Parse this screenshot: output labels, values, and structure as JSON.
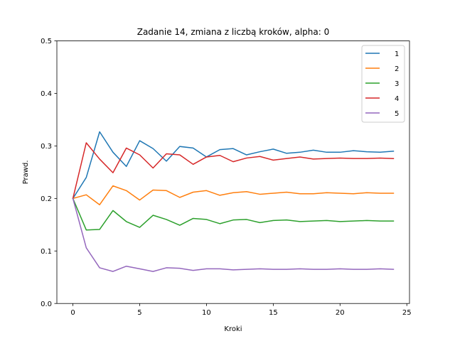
{
  "chart_data": {
    "type": "line",
    "title": "Zadanie 14, zmiana z liczbą kroków, alpha: 0",
    "xlabel": "Kroki",
    "ylabel": "Prawd.",
    "xlim": [
      -1.2,
      25.2
    ],
    "ylim": [
      0.0,
      0.5
    ],
    "xticks": [
      0,
      5,
      10,
      15,
      20,
      25
    ],
    "yticks": [
      0.0,
      0.1,
      0.2,
      0.3,
      0.4,
      0.5
    ],
    "xtick_labels": [
      "0",
      "5",
      "10",
      "15",
      "20",
      "25"
    ],
    "ytick_labels": [
      "0.0",
      "0.1",
      "0.2",
      "0.3",
      "0.4",
      "0.5"
    ],
    "grid": false,
    "legend_position": "top-right",
    "x": [
      0,
      1,
      2,
      3,
      4,
      5,
      6,
      7,
      8,
      9,
      10,
      11,
      12,
      13,
      14,
      15,
      16,
      17,
      18,
      19,
      20,
      21,
      22,
      23,
      24
    ],
    "series": [
      {
        "name": "1",
        "color": "#1f77b4",
        "values": [
          0.2,
          0.24,
          0.327,
          0.288,
          0.261,
          0.31,
          0.295,
          0.271,
          0.299,
          0.296,
          0.279,
          0.293,
          0.295,
          0.283,
          0.289,
          0.294,
          0.286,
          0.288,
          0.292,
          0.288,
          0.288,
          0.291,
          0.289,
          0.288,
          0.29
        ]
      },
      {
        "name": "2",
        "color": "#ff7f0e",
        "values": [
          0.2,
          0.207,
          0.188,
          0.224,
          0.215,
          0.197,
          0.216,
          0.215,
          0.202,
          0.212,
          0.215,
          0.206,
          0.211,
          0.213,
          0.208,
          0.21,
          0.212,
          0.209,
          0.209,
          0.211,
          0.21,
          0.209,
          0.211,
          0.21,
          0.21
        ]
      },
      {
        "name": "3",
        "color": "#2ca02c",
        "values": [
          0.2,
          0.14,
          0.141,
          0.177,
          0.156,
          0.145,
          0.168,
          0.16,
          0.149,
          0.162,
          0.16,
          0.152,
          0.159,
          0.16,
          0.154,
          0.158,
          0.159,
          0.156,
          0.157,
          0.158,
          0.156,
          0.157,
          0.158,
          0.157,
          0.157
        ]
      },
      {
        "name": "4",
        "color": "#d62728",
        "values": [
          0.2,
          0.306,
          0.275,
          0.249,
          0.296,
          0.283,
          0.258,
          0.285,
          0.283,
          0.265,
          0.279,
          0.282,
          0.27,
          0.277,
          0.28,
          0.273,
          0.276,
          0.279,
          0.275,
          0.276,
          0.277,
          0.276,
          0.276,
          0.277,
          0.276
        ]
      },
      {
        "name": "5",
        "color": "#9467bd",
        "values": [
          0.2,
          0.106,
          0.068,
          0.061,
          0.071,
          0.066,
          0.061,
          0.068,
          0.067,
          0.063,
          0.066,
          0.066,
          0.064,
          0.065,
          0.066,
          0.065,
          0.065,
          0.066,
          0.065,
          0.065,
          0.066,
          0.065,
          0.065,
          0.066,
          0.065
        ]
      }
    ]
  }
}
